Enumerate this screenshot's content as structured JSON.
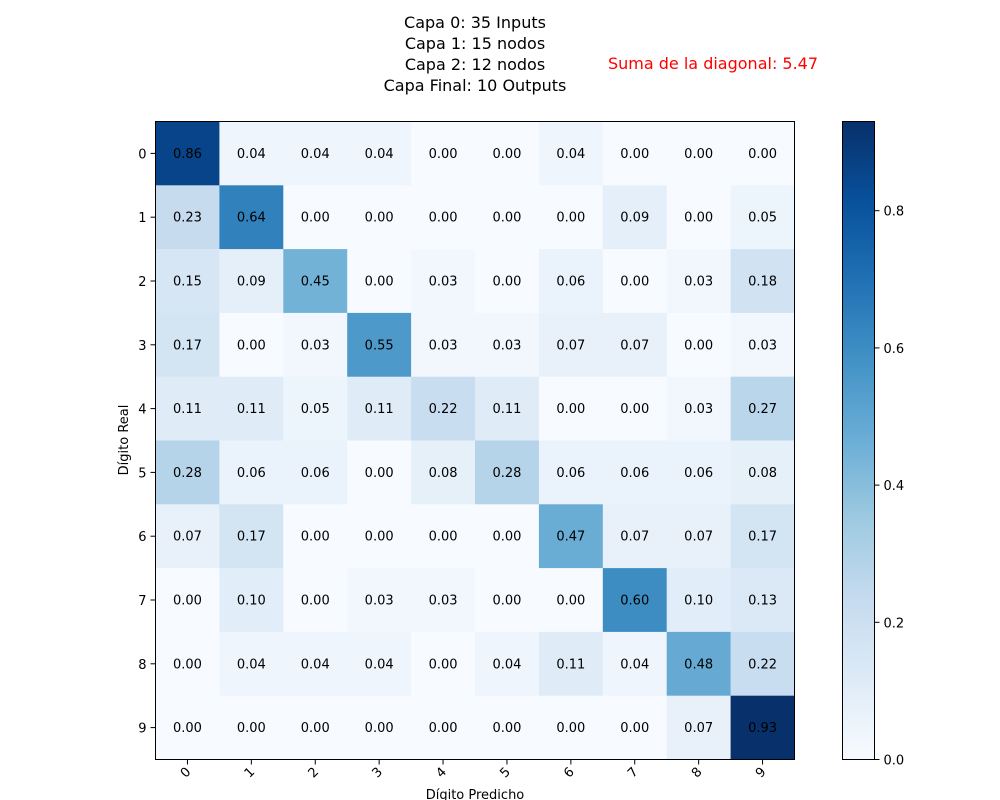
{
  "chart_data": {
    "type": "heatmap",
    "title_lines": [
      "Capa 0: 35 Inputs",
      "Capa 1: 15 nodos",
      "Capa 2: 12 nodos",
      "Capa Final: 10 Outputs"
    ],
    "annotation": "Suma de la diagonal: 5.47",
    "annotation_color": "#ff0000",
    "xlabel": "Dígito Predicho",
    "ylabel": "Dígito Real",
    "x_categories": [
      "0",
      "1",
      "2",
      "3",
      "4",
      "5",
      "6",
      "7",
      "8",
      "9"
    ],
    "y_categories": [
      "0",
      "1",
      "2",
      "3",
      "4",
      "5",
      "6",
      "7",
      "8",
      "9"
    ],
    "values": [
      [
        0.86,
        0.04,
        0.04,
        0.04,
        0.0,
        0.0,
        0.04,
        0.0,
        0.0,
        0.0
      ],
      [
        0.23,
        0.64,
        0.0,
        0.0,
        0.0,
        0.0,
        0.0,
        0.09,
        0.0,
        0.05
      ],
      [
        0.15,
        0.09,
        0.45,
        0.0,
        0.03,
        0.0,
        0.06,
        0.0,
        0.03,
        0.18
      ],
      [
        0.17,
        0.0,
        0.03,
        0.55,
        0.03,
        0.03,
        0.07,
        0.07,
        0.0,
        0.03
      ],
      [
        0.11,
        0.11,
        0.05,
        0.11,
        0.22,
        0.11,
        0.0,
        0.0,
        0.03,
        0.27
      ],
      [
        0.28,
        0.06,
        0.06,
        0.0,
        0.08,
        0.28,
        0.06,
        0.06,
        0.06,
        0.08
      ],
      [
        0.07,
        0.17,
        0.0,
        0.0,
        0.0,
        0.0,
        0.47,
        0.07,
        0.07,
        0.17
      ],
      [
        0.0,
        0.1,
        0.0,
        0.03,
        0.03,
        0.0,
        0.0,
        0.6,
        0.1,
        0.13
      ],
      [
        0.0,
        0.04,
        0.04,
        0.04,
        0.0,
        0.04,
        0.11,
        0.04,
        0.48,
        0.22
      ],
      [
        0.0,
        0.0,
        0.0,
        0.0,
        0.0,
        0.0,
        0.0,
        0.0,
        0.07,
        0.93
      ]
    ],
    "colormap": "Blues",
    "colorbar": {
      "range": [
        0.0,
        0.93
      ],
      "ticks": [
        0.0,
        0.2,
        0.4,
        0.6,
        0.8
      ],
      "tick_labels": [
        "0.0",
        "0.2",
        "0.4",
        "0.6",
        "0.8"
      ]
    }
  }
}
